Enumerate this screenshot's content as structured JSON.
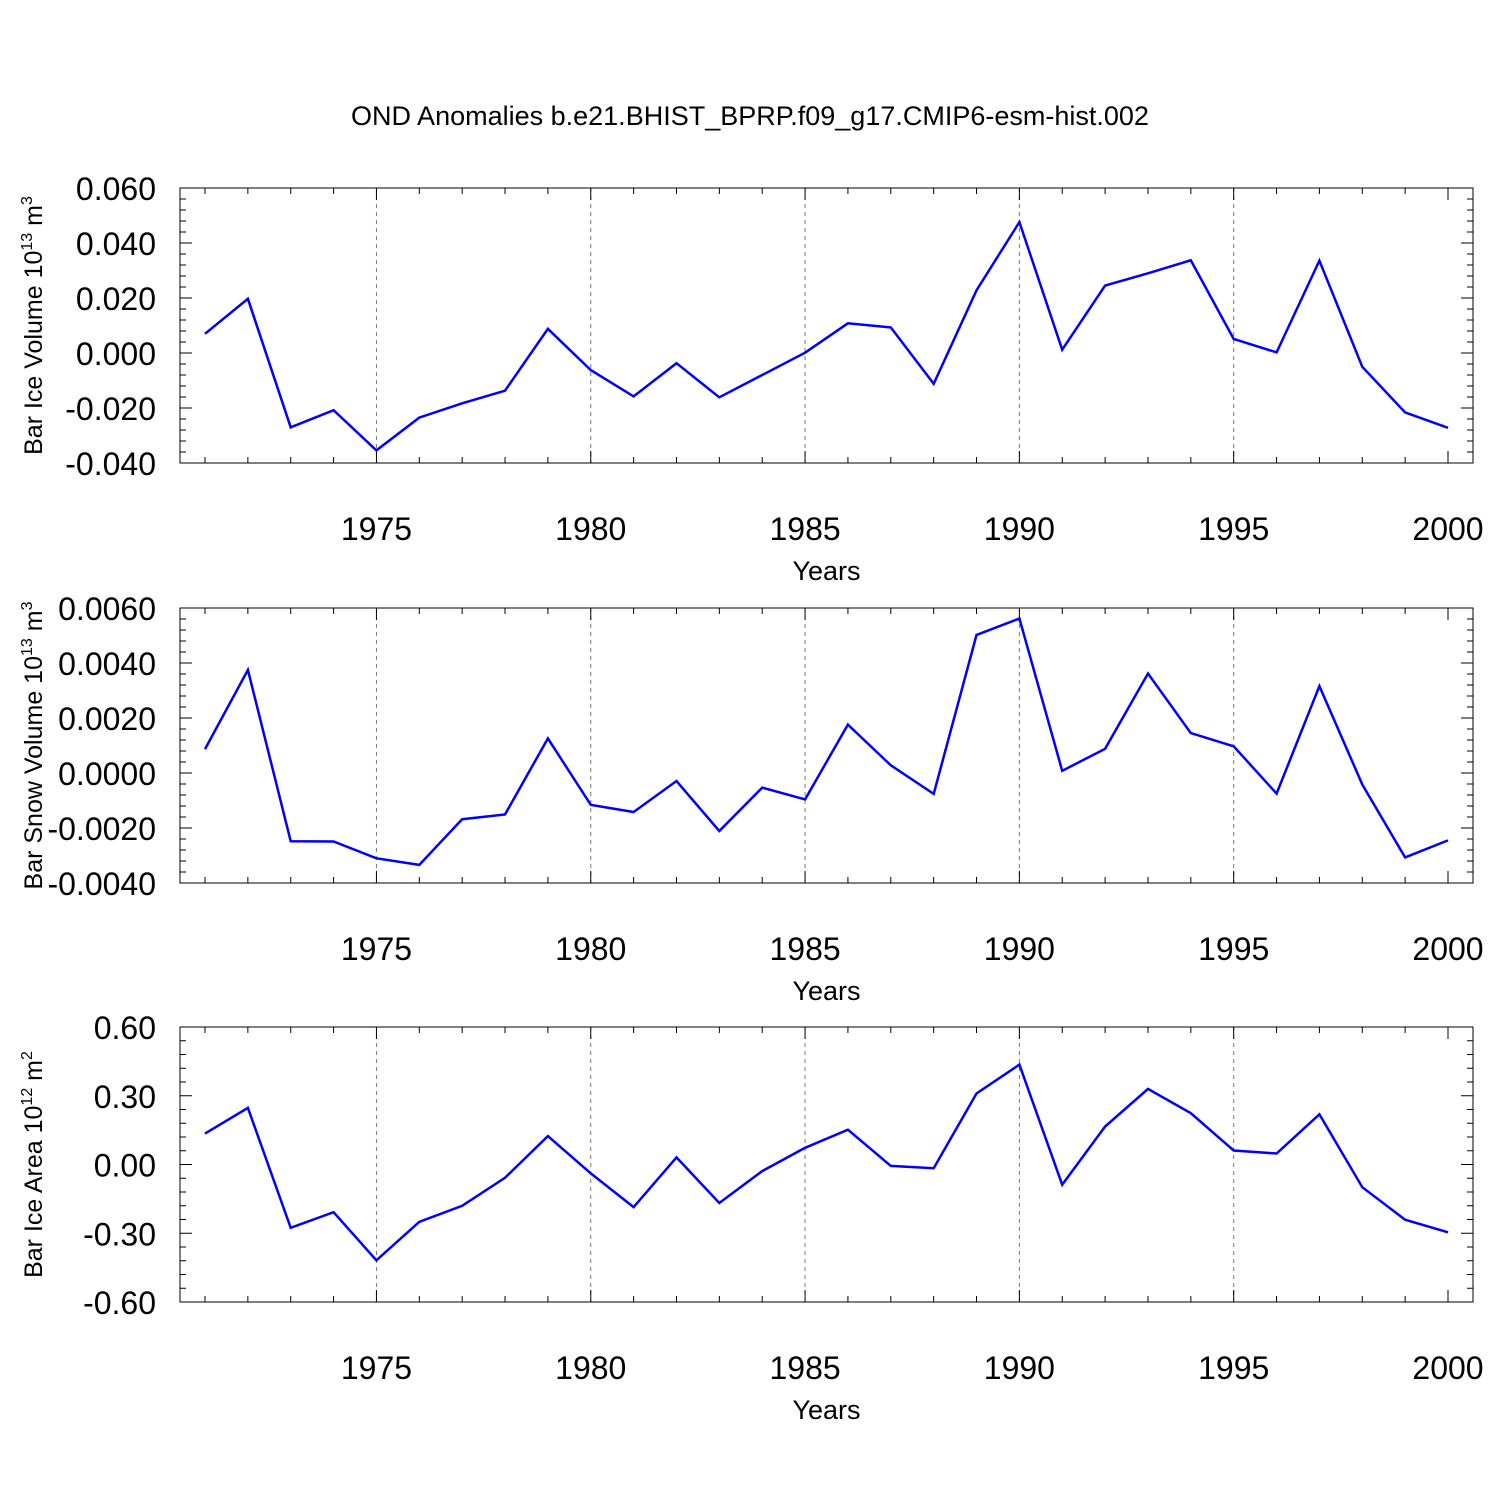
{
  "title": "OND Anomalies b.e21.BHIST_BPRP.f09_g17.CMIP6-esm-hist.002",
  "line_color": "#0000ff",
  "chart_data": [
    {
      "type": "line",
      "xlabel": "Years",
      "ylabel_main": "Bar Ice Volume 10",
      "ylabel_exp": "13",
      "ylabel_unit": " m",
      "ylabel_unit_exp": "3",
      "xlim": [
        1971,
        2000
      ],
      "ylim": [
        -0.04,
        0.06
      ],
      "xticks": [
        1975,
        1980,
        1985,
        1990,
        1995,
        2000
      ],
      "yticks": [
        -0.04,
        -0.02,
        0.0,
        0.02,
        0.04,
        0.06
      ],
      "ytick_labels": [
        "-0.040",
        "-0.020",
        "0.000",
        "0.020",
        "0.040",
        "0.060"
      ],
      "grid": "vertical dashed at major x ticks",
      "series": [
        {
          "x": [
            1971,
            1972,
            1973,
            1974,
            1975,
            1976,
            1977,
            1978,
            1979,
            1980,
            1981,
            1982,
            1983,
            1984,
            1985,
            1986,
            1987,
            1988,
            1989,
            1990,
            1991,
            1992,
            1993,
            1994,
            1995,
            1996,
            1997,
            1998,
            1999,
            2000
          ],
          "values": [
            0.007,
            0.0197,
            -0.027,
            -0.0208,
            -0.0354,
            -0.0235,
            -0.0183,
            -0.0137,
            0.0088,
            -0.0062,
            -0.0158,
            -0.0037,
            -0.0161,
            -0.008,
            0.0001,
            0.0108,
            0.0093,
            -0.0112,
            0.0228,
            0.0476,
            0.0012,
            0.0245,
            0.029,
            0.0337,
            0.0051,
            0.0002,
            0.0336,
            -0.005,
            -0.0216,
            -0.0272
          ]
        }
      ]
    },
    {
      "type": "line",
      "xlabel": "Years",
      "ylabel_main": "Bar Snow Volume 10",
      "ylabel_exp": "13",
      "ylabel_unit": " m",
      "ylabel_unit_exp": "3",
      "xlim": [
        1971,
        2000
      ],
      "ylim": [
        -0.004,
        0.006
      ],
      "xticks": [
        1975,
        1980,
        1985,
        1990,
        1995,
        2000
      ],
      "yticks": [
        -0.004,
        -0.002,
        0.0,
        0.002,
        0.004,
        0.006
      ],
      "ytick_labels": [
        "-0.0040",
        "-0.0020",
        "0.0000",
        "0.0020",
        "0.0040",
        "0.0060"
      ],
      "grid": "vertical dashed at major x ticks",
      "series": [
        {
          "x": [
            1971,
            1972,
            1973,
            1974,
            1975,
            1976,
            1977,
            1978,
            1979,
            1980,
            1981,
            1982,
            1983,
            1984,
            1985,
            1986,
            1987,
            1988,
            1989,
            1990,
            1991,
            1992,
            1993,
            1994,
            1995,
            1996,
            1997,
            1998,
            1999,
            2000
          ],
          "values": [
            0.00087,
            0.00375,
            -0.00248,
            -0.00249,
            -0.0031,
            -0.00334,
            -0.00168,
            -0.00151,
            0.00126,
            -0.00116,
            -0.00142,
            -0.00029,
            -0.00211,
            -0.00053,
            -0.00096,
            0.00176,
            0.00028,
            -0.00076,
            0.00502,
            0.00562,
            8e-05,
            0.00088,
            0.00362,
            0.00145,
            0.00097,
            -0.00075,
            0.00316,
            -0.00042,
            -0.00307,
            -0.00245
          ]
        }
      ]
    },
    {
      "type": "line",
      "xlabel": "Years",
      "ylabel_main": "Bar Ice Area 10",
      "ylabel_exp": "12",
      "ylabel_unit": " m",
      "ylabel_unit_exp": "2",
      "xlim": [
        1971,
        2000
      ],
      "ylim": [
        -0.6,
        0.6
      ],
      "xticks": [
        1975,
        1980,
        1985,
        1990,
        1995,
        2000
      ],
      "yticks": [
        -0.6,
        -0.3,
        0.0,
        0.3,
        0.6
      ],
      "ytick_labels": [
        "-0.60",
        "-0.30",
        "0.00",
        "0.30",
        "0.60"
      ],
      "grid": "vertical dashed at major x ticks",
      "series": [
        {
          "x": [
            1971,
            1972,
            1973,
            1974,
            1975,
            1976,
            1977,
            1978,
            1979,
            1980,
            1981,
            1982,
            1983,
            1984,
            1985,
            1986,
            1987,
            1988,
            1989,
            1990,
            1991,
            1992,
            1993,
            1994,
            1995,
            1996,
            1997,
            1998,
            1999,
            2000
          ],
          "values": [
            0.135,
            0.247,
            -0.276,
            -0.208,
            -0.418,
            -0.25,
            -0.18,
            -0.058,
            0.124,
            -0.039,
            -0.186,
            0.031,
            -0.168,
            -0.029,
            0.073,
            0.152,
            -0.006,
            -0.016,
            0.31,
            0.436,
            -0.088,
            0.166,
            0.33,
            0.224,
            0.061,
            0.048,
            0.219,
            -0.099,
            -0.241,
            -0.296
          ]
        }
      ]
    }
  ]
}
